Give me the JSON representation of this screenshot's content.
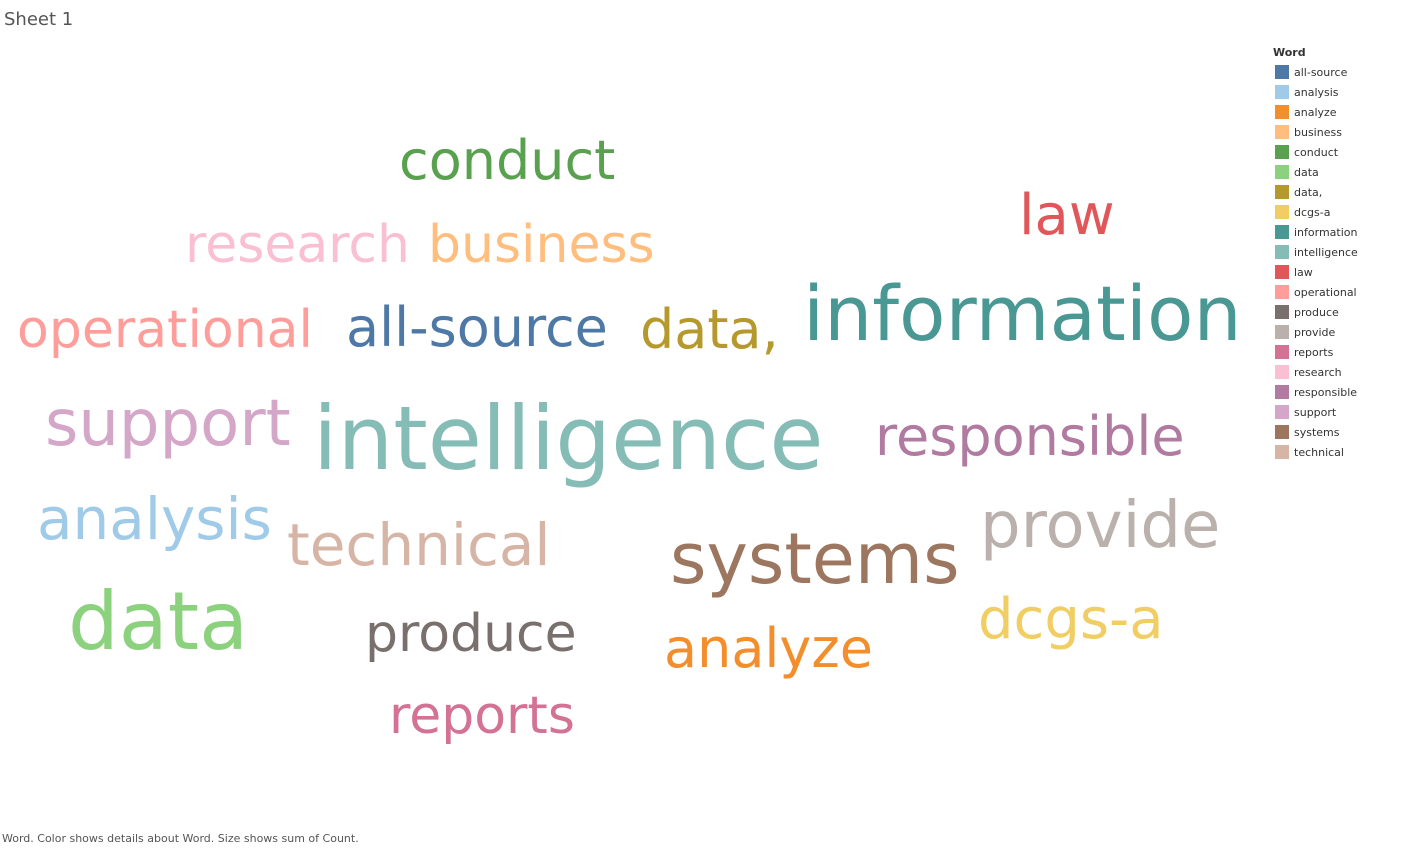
{
  "sheet": {
    "title": "Sheet 1"
  },
  "caption": "Word.  Color shows details about Word.  Size shows sum of Count.",
  "chart_data": {
    "type": "word_cloud",
    "title": "",
    "color_legend_title": "Word",
    "size_encoding": "sum of Count",
    "words": [
      {
        "text": "intelligence",
        "color": "#86BCB6",
        "size_rank": 1
      },
      {
        "text": "information",
        "color": "#499894",
        "size_rank": 2
      },
      {
        "text": "data",
        "color": "#8CD17D",
        "size_rank": 3
      },
      {
        "text": "systems",
        "color": "#9D7660",
        "size_rank": 4
      },
      {
        "text": "support",
        "color": "#D4A6C8",
        "size_rank": 5
      },
      {
        "text": "provide",
        "color": "#BAB0AC",
        "size_rank": 6
      },
      {
        "text": "technical",
        "color": "#D7B5A6",
        "size_rank": 7
      },
      {
        "text": "responsible",
        "color": "#B07AA1",
        "size_rank": 8
      },
      {
        "text": "analysis",
        "color": "#A0CBE8",
        "size_rank": 9
      },
      {
        "text": "conduct",
        "color": "#59A14F",
        "size_rank": 10
      },
      {
        "text": "law",
        "color": "#E15759",
        "size_rank": 11
      },
      {
        "text": "all-source",
        "color": "#4E79A7",
        "size_rank": 12
      },
      {
        "text": "operational",
        "color": "#FF9D9A",
        "size_rank": 13
      },
      {
        "text": "data,",
        "color": "#B6992D",
        "size_rank": 14
      },
      {
        "text": "business",
        "color": "#FFBE7D",
        "size_rank": 15
      },
      {
        "text": "research",
        "color": "#FABFD2",
        "size_rank": 16
      },
      {
        "text": "analyze",
        "color": "#F28E2B",
        "size_rank": 17
      },
      {
        "text": "produce",
        "color": "#79706E",
        "size_rank": 18
      },
      {
        "text": "reports",
        "color": "#D37295",
        "size_rank": 19
      },
      {
        "text": "dcgs-a",
        "color": "#F1CE63",
        "size_rank": 20
      }
    ],
    "legend": [
      {
        "label": "all-source",
        "color": "#4E79A7"
      },
      {
        "label": "analysis",
        "color": "#A0CBE8"
      },
      {
        "label": "analyze",
        "color": "#F28E2B"
      },
      {
        "label": "business",
        "color": "#FFBE7D"
      },
      {
        "label": "conduct",
        "color": "#59A14F"
      },
      {
        "label": "data",
        "color": "#8CD17D"
      },
      {
        "label": "data,",
        "color": "#B6992D"
      },
      {
        "label": "dcgs-a",
        "color": "#F1CE63"
      },
      {
        "label": "information",
        "color": "#499894"
      },
      {
        "label": "intelligence",
        "color": "#86BCB6"
      },
      {
        "label": "law",
        "color": "#E15759"
      },
      {
        "label": "operational",
        "color": "#FF9D9A"
      },
      {
        "label": "produce",
        "color": "#79706E"
      },
      {
        "label": "provide",
        "color": "#BAB0AC"
      },
      {
        "label": "reports",
        "color": "#D37295"
      },
      {
        "label": "research",
        "color": "#FABFD2"
      },
      {
        "label": "responsible",
        "color": "#B07AA1"
      },
      {
        "label": "support",
        "color": "#D4A6C8"
      },
      {
        "label": "systems",
        "color": "#9D7660"
      },
      {
        "label": "technical",
        "color": "#D7B5A6"
      }
    ]
  }
}
